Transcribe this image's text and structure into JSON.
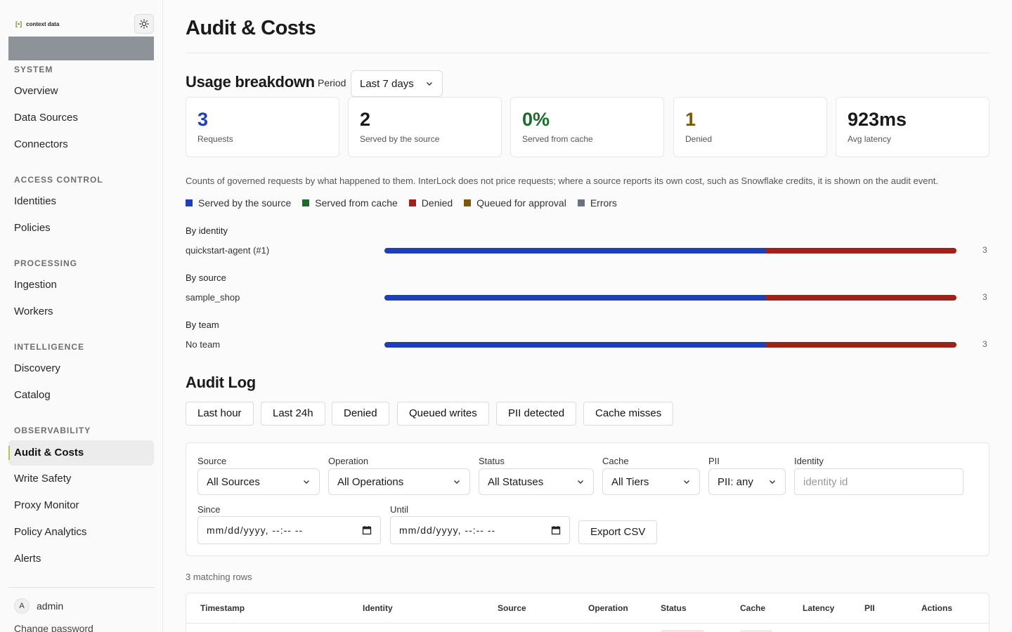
{
  "app": {
    "logo_mark": "[•]",
    "logo_text": "context data"
  },
  "sidebar": {
    "sections": [
      {
        "title": "SYSTEM",
        "items": [
          "Overview",
          "Data Sources",
          "Connectors"
        ]
      },
      {
        "title": "ACCESS CONTROL",
        "items": [
          "Identities",
          "Policies"
        ]
      },
      {
        "title": "PROCESSING",
        "items": [
          "Ingestion",
          "Workers"
        ]
      },
      {
        "title": "INTELLIGENCE",
        "items": [
          "Discovery",
          "Catalog"
        ]
      },
      {
        "title": "OBSERVABILITY",
        "items": [
          "Audit & Costs",
          "Write Safety",
          "Proxy Monitor",
          "Policy Analytics",
          "Alerts"
        ]
      }
    ],
    "active_item": "Audit & Costs",
    "user": {
      "initial": "A",
      "name": "admin"
    },
    "change_password": "Change password"
  },
  "page": {
    "title": "Audit & Costs"
  },
  "usage": {
    "title": "Usage breakdown",
    "period_label": "Period",
    "period_value": "Last 7 days",
    "stats": [
      {
        "value": "3",
        "label": "Requests",
        "color": "#1d3fb8"
      },
      {
        "value": "2",
        "label": "Served by the source",
        "color": "#1a1a1a"
      },
      {
        "value": "0%",
        "label": "Served from cache",
        "color": "#1d6b2c"
      },
      {
        "value": "1",
        "label": "Denied",
        "color": "#7a5a0a"
      },
      {
        "value": "923ms",
        "label": "Avg latency",
        "color": "#1a1a1a"
      }
    ],
    "description": "Counts of governed requests by what happened to them. InterLock does not price requests; where a source reports its own cost, such as Snowflake credits, it is shown on the audit event.",
    "legend": [
      {
        "label": "Served by the source",
        "color": "#1d3fb8"
      },
      {
        "label": "Served from cache",
        "color": "#1d6b2c"
      },
      {
        "label": "Denied",
        "color": "#a0201a"
      },
      {
        "label": "Queued for approval",
        "color": "#7a5a0a"
      },
      {
        "label": "Errors",
        "color": "#6b7280"
      }
    ],
    "breakdowns": [
      {
        "heading": "By identity",
        "label": "quickstart-agent (#1)",
        "served": 2,
        "denied": 1,
        "total": "3"
      },
      {
        "heading": "By source",
        "label": "sample_shop",
        "served": 2,
        "denied": 1,
        "total": "3"
      },
      {
        "heading": "By team",
        "label": "No team",
        "served": 2,
        "denied": 1,
        "total": "3"
      }
    ]
  },
  "audit": {
    "title": "Audit Log",
    "quick_filters": [
      "Last hour",
      "Last 24h",
      "Denied",
      "Queued writes",
      "PII detected",
      "Cache misses"
    ],
    "filters": {
      "source": {
        "label": "Source",
        "value": "All Sources"
      },
      "operation": {
        "label": "Operation",
        "value": "All Operations"
      },
      "status": {
        "label": "Status",
        "value": "All Statuses"
      },
      "cache": {
        "label": "Cache",
        "value": "All Tiers"
      },
      "pii": {
        "label": "PII",
        "value": "PII: any"
      },
      "identity": {
        "label": "Identity",
        "placeholder": "identity id"
      },
      "since": {
        "label": "Since",
        "value": "mm/dd/yyyy, --:-- --"
      },
      "until": {
        "label": "Until",
        "value": "mm/dd/yyyy, --:-- --"
      }
    },
    "export_label": "Export CSV",
    "matching_rows": "3 matching rows",
    "columns": [
      "Timestamp",
      "Identity",
      "Source",
      "Operation",
      "Status",
      "Cache",
      "Latency",
      "PII",
      "Actions"
    ]
  }
}
